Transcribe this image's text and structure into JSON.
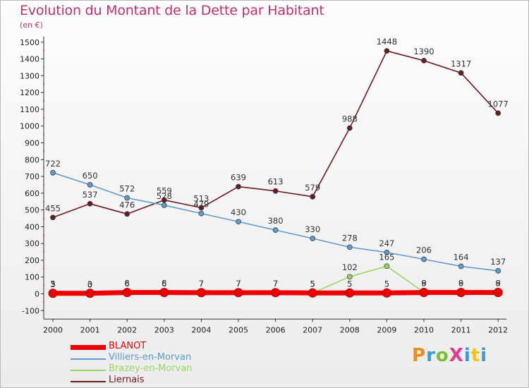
{
  "title": "Evolution du Montant de la Dette par Habitant",
  "subtitle": "(en €)",
  "logo_text": "ProXiti",
  "logo_colors": [
    "#f08a1c",
    "#3a9ad9",
    "#7dbf2f",
    "#e03a8c",
    "#3a9ad9",
    "#f0c21c",
    "#3a9ad9"
  ],
  "chart_data": {
    "type": "line",
    "x": [
      "2000",
      "2001",
      "2002",
      "2003",
      "2004",
      "2005",
      "2006",
      "2007",
      "2008",
      "2009",
      "2010",
      "2011",
      "2012"
    ],
    "ylim": [
      -100,
      1500
    ],
    "yticks": [
      -100,
      0,
      100,
      200,
      300,
      400,
      500,
      600,
      700,
      800,
      900,
      1000,
      1100,
      1200,
      1300,
      1400,
      1500
    ],
    "grid": false,
    "legend_position": "bottom-left",
    "series": [
      {
        "name": "Liernais",
        "color": "#6b1a1f",
        "values": [
          455,
          537,
          476,
          559,
          513,
          639,
          613,
          579,
          988,
          1448,
          1390,
          1317,
          1077
        ],
        "labels": [
          "455",
          "537",
          "476",
          "559",
          "513",
          "639",
          "613",
          "579",
          "988",
          "1448",
          "1390",
          "1317",
          "1077"
        ]
      },
      {
        "name": "Villiers-en-Morvan",
        "color": "#5d9bd0",
        "values": [
          722,
          650,
          572,
          528,
          479,
          430,
          380,
          330,
          278,
          247,
          206,
          164,
          137
        ],
        "labels": [
          "722",
          "650",
          "572",
          "528",
          "479",
          "430",
          "380",
          "330",
          "278",
          "247",
          "206",
          "164",
          "137"
        ]
      },
      {
        "name": "Brazey-en-Morvan",
        "color": "#99d660",
        "values": [
          5,
          0,
          6,
          6,
          7,
          7,
          7,
          5,
          102,
          165,
          9,
          9,
          9
        ],
        "labels": [
          "5",
          "0",
          "6",
          "6",
          "7",
          "7",
          "7",
          "5",
          "102",
          "165",
          "9",
          "9",
          "9"
        ]
      },
      {
        "name": "BLANOT",
        "color": "#ee0000",
        "values": [
          3,
          3,
          8,
          8,
          7,
          7,
          7,
          5,
          5,
          5,
          8,
          8,
          8
        ],
        "labels": [
          "3",
          "3",
          "8",
          "8",
          "7",
          "7",
          "7",
          "5",
          "5",
          "5",
          "8",
          "8",
          "8"
        ]
      }
    ]
  }
}
